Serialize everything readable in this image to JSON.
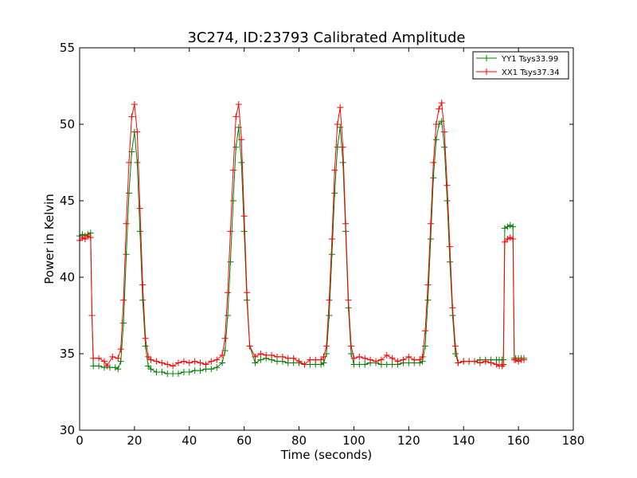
{
  "colors": {
    "yy1": "#008000",
    "xx1": "#ff0000"
  },
  "chart_data": {
    "type": "line",
    "title": "3C274, ID:23793 Calibrated Amplitude",
    "xlabel": "Time (seconds)",
    "ylabel": "Power in Kelvin",
    "xlim": [
      0,
      180
    ],
    "ylim": [
      30,
      55
    ],
    "xticks": [
      0,
      20,
      40,
      60,
      80,
      100,
      120,
      140,
      160,
      180
    ],
    "yticks": [
      30,
      35,
      40,
      45,
      50,
      55
    ],
    "legend_position": "top-right",
    "series": [
      {
        "name": "YY1 Tsys33.99",
        "color_key": "yy1",
        "marker": "+",
        "x": [
          0,
          1,
          2,
          3,
          4,
          4.5,
          5,
          7,
          9,
          11,
          13,
          14,
          15,
          16,
          17,
          18,
          19,
          20,
          21,
          22,
          23,
          24,
          25,
          26,
          28,
          30,
          32,
          34,
          36,
          38,
          40,
          42,
          44,
          46,
          48,
          50,
          52,
          53,
          54,
          55,
          56,
          57,
          58,
          59,
          60,
          61,
          62,
          64,
          66,
          68,
          70,
          72,
          74,
          76,
          78,
          80,
          82,
          84,
          86,
          88,
          89,
          90,
          91,
          92,
          93,
          94,
          95,
          96,
          97,
          98,
          99,
          100,
          102,
          104,
          106,
          108,
          110,
          112,
          114,
          116,
          118,
          120,
          122,
          124,
          125,
          126,
          127,
          128,
          129,
          130,
          131,
          132,
          133,
          134,
          135,
          136,
          137,
          138,
          140,
          142,
          144,
          146,
          148,
          150,
          152,
          153,
          154,
          154.5,
          155,
          156,
          157,
          158,
          158.5,
          159,
          160,
          161,
          162
        ],
        "y": [
          42.7,
          42.8,
          42.7,
          42.8,
          42.9,
          37.5,
          34.2,
          34.2,
          34.1,
          34.1,
          34.1,
          34.0,
          34.5,
          37.0,
          41.5,
          45.5,
          48.2,
          49.5,
          47.5,
          43.0,
          38.5,
          35.5,
          34.2,
          34.0,
          33.8,
          33.8,
          33.7,
          33.7,
          33.7,
          33.8,
          33.8,
          33.9,
          33.9,
          34.0,
          34.0,
          34.1,
          34.4,
          35.2,
          37.5,
          41.0,
          45.0,
          48.5,
          49.8,
          47.5,
          43.0,
          38.5,
          35.5,
          34.4,
          34.6,
          34.7,
          34.6,
          34.5,
          34.5,
          34.4,
          34.4,
          34.4,
          34.3,
          34.3,
          34.3,
          34.3,
          34.4,
          35.0,
          37.5,
          41.5,
          45.5,
          48.5,
          49.8,
          47.5,
          43.0,
          38.0,
          35.0,
          34.3,
          34.3,
          34.3,
          34.4,
          34.4,
          34.3,
          34.3,
          34.3,
          34.3,
          34.4,
          34.4,
          34.4,
          34.4,
          34.5,
          35.5,
          38.5,
          42.5,
          46.5,
          49.0,
          50.0,
          50.2,
          48.5,
          45.0,
          41.0,
          37.5,
          35.0,
          34.4,
          34.5,
          34.5,
          34.5,
          34.6,
          34.6,
          34.6,
          34.6,
          34.6,
          34.6,
          34.6,
          43.2,
          43.3,
          43.4,
          43.3,
          34.7,
          34.7,
          34.7,
          34.7,
          34.7
        ]
      },
      {
        "name": "XX1 Tsys37.34",
        "color_key": "xx1",
        "marker": "+",
        "x": [
          0,
          1,
          2,
          3,
          4,
          4.5,
          5,
          7,
          9,
          10,
          12,
          14,
          15,
          16,
          17,
          18,
          19,
          20,
          21,
          22,
          23,
          24,
          25,
          26,
          28,
          30,
          32,
          34,
          36,
          38,
          40,
          42,
          44,
          46,
          48,
          50,
          52,
          53,
          54,
          55,
          56,
          57,
          58,
          59,
          60,
          61,
          62,
          64,
          66,
          68,
          70,
          72,
          74,
          76,
          78,
          80,
          82,
          84,
          86,
          88,
          89,
          90,
          91,
          92,
          93,
          94,
          95,
          96,
          97,
          98,
          99,
          100,
          102,
          104,
          106,
          108,
          110,
          112,
          114,
          116,
          118,
          120,
          122,
          124,
          125,
          126,
          127,
          128,
          129,
          130,
          131,
          132,
          133,
          134,
          135,
          136,
          137,
          138,
          140,
          142,
          144,
          146,
          148,
          150,
          152,
          153,
          154,
          154.5,
          155,
          156,
          157,
          158,
          158.5,
          159,
          160,
          161,
          162
        ],
        "y": [
          42.4,
          42.6,
          42.5,
          42.7,
          42.6,
          37.5,
          34.7,
          34.7,
          34.5,
          34.2,
          34.8,
          34.7,
          35.3,
          38.5,
          43.5,
          47.5,
          50.5,
          51.3,
          49.5,
          44.5,
          39.5,
          36.0,
          34.8,
          34.6,
          34.5,
          34.4,
          34.3,
          34.2,
          34.4,
          34.5,
          34.4,
          34.5,
          34.4,
          34.3,
          34.5,
          34.6,
          34.9,
          36.0,
          39.0,
          43.0,
          47.0,
          50.5,
          51.3,
          49.0,
          44.0,
          39.0,
          35.5,
          34.8,
          35.0,
          34.9,
          34.9,
          34.8,
          34.8,
          34.7,
          34.7,
          34.5,
          34.3,
          34.6,
          34.6,
          34.6,
          34.8,
          35.5,
          38.5,
          42.5,
          47.0,
          50.0,
          51.1,
          48.5,
          43.5,
          38.5,
          35.5,
          34.7,
          34.8,
          34.7,
          34.6,
          34.5,
          34.6,
          34.9,
          34.7,
          34.5,
          34.6,
          34.8,
          34.6,
          34.6,
          34.8,
          36.5,
          39.5,
          43.5,
          47.5,
          50.0,
          51.0,
          51.4,
          49.5,
          46.0,
          42.0,
          38.0,
          35.5,
          34.4,
          34.5,
          34.5,
          34.5,
          34.4,
          34.5,
          34.4,
          34.3,
          34.2,
          34.2,
          34.3,
          42.3,
          42.5,
          42.6,
          42.5,
          34.6,
          34.6,
          34.5,
          34.6,
          34.6
        ]
      }
    ]
  }
}
